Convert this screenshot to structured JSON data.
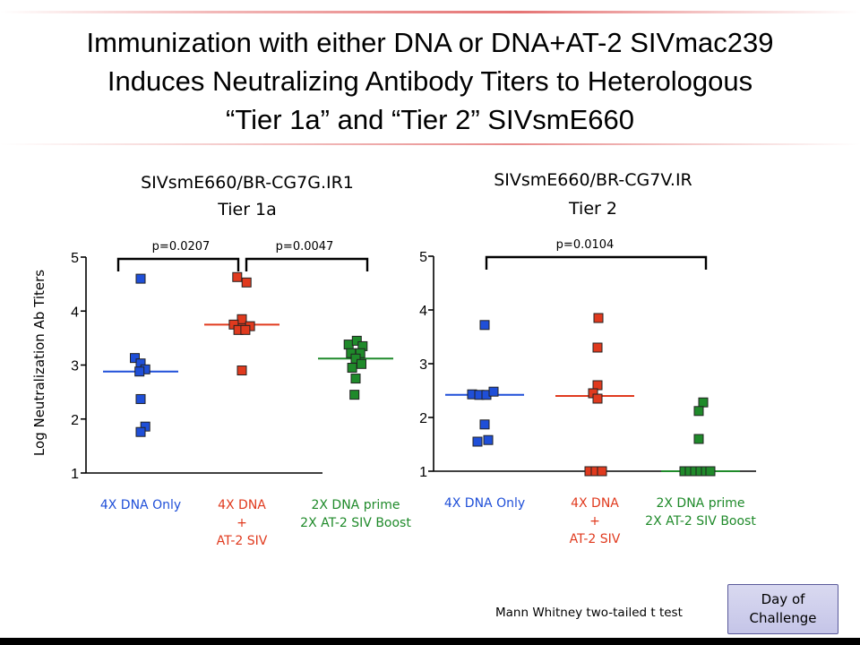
{
  "slide": {
    "title_lines": [
      "Immunization with either DNA or DNA+AT-2 SIVmac239",
      "Induces  Neutralizing Antibody Titers to Heterologous",
      "“Tier 1a”  and “Tier 2” SIVsmE660"
    ],
    "footnote": "Mann Whitney two-tailed t test",
    "button_label": "Day of\nChallenge"
  },
  "colors": {
    "blue": "#1f4fd8",
    "red": "#e03a1e",
    "green": "#1f8a2a"
  },
  "chart_data": [
    {
      "type": "scatter",
      "title_lines": [
        "SIVsmE660/BR-CG7G.IR1",
        "Tier 1a"
      ],
      "ylabel": "Log Neutralization Ab Titers",
      "ylim": [
        1,
        5
      ],
      "yticks": [
        "1",
        "2",
        "3",
        "4",
        "5"
      ],
      "categories": [
        {
          "lines": [
            "4X DNA Only"
          ],
          "color": "blue"
        },
        {
          "lines": [
            "4X DNA",
            "+",
            "AT-2 SIV"
          ],
          "color": "red"
        },
        {
          "lines": [
            "2X DNA prime",
            "2X AT-2 SIV Boost"
          ],
          "color": "green"
        }
      ],
      "series": [
        {
          "category": 0,
          "median": 2.88,
          "points": [
            [
              0,
              4.6
            ],
            [
              -0.25,
              3.13
            ],
            [
              0,
              3.03
            ],
            [
              0.2,
              2.92
            ],
            [
              -0.05,
              2.88
            ],
            [
              0,
              2.37
            ],
            [
              0.2,
              1.86
            ],
            [
              0,
              1.76
            ]
          ]
        },
        {
          "category": 1,
          "median": 3.75,
          "points": [
            [
              -0.2,
              4.63
            ],
            [
              0.2,
              4.53
            ],
            [
              0,
              3.85
            ],
            [
              -0.35,
              3.75
            ],
            [
              0.35,
              3.72
            ],
            [
              -0.15,
              3.65
            ],
            [
              0.15,
              3.65
            ],
            [
              0,
              2.9
            ]
          ]
        },
        {
          "category": 2,
          "median": 3.12,
          "points": [
            [
              -0.3,
              3.38
            ],
            [
              0.05,
              3.45
            ],
            [
              0.3,
              3.35
            ],
            [
              -0.2,
              3.22
            ],
            [
              0.2,
              3.22
            ],
            [
              0,
              3.12
            ],
            [
              0.25,
              3.02
            ],
            [
              -0.15,
              2.95
            ],
            [
              0,
              2.75
            ],
            [
              -0.05,
              2.45
            ]
          ]
        }
      ],
      "comparisons": [
        {
          "label": "p=0.0207",
          "from": 0,
          "to": 1
        },
        {
          "label": "p=0.0047",
          "from": 1,
          "to": 2
        }
      ]
    },
    {
      "type": "scatter",
      "title_lines": [
        "SIVsmE660/BR-CG7V.IR",
        "Tier 2"
      ],
      "ylim": [
        1,
        5
      ],
      "yticks": [
        "1",
        "2",
        "3",
        "4",
        "5"
      ],
      "categories": [
        {
          "lines": [
            "4X DNA Only"
          ],
          "color": "blue"
        },
        {
          "lines": [
            "4X DNA",
            "+",
            "AT-2 SIV"
          ],
          "color": "red"
        },
        {
          "lines": [
            "2X DNA prime",
            "2X AT-2 SIV Boost"
          ],
          "color": "green"
        }
      ],
      "series": [
        {
          "category": 0,
          "median": 2.42,
          "points": [
            [
              0,
              3.72
            ],
            [
              -0.7,
              2.43
            ],
            [
              -0.3,
              2.42
            ],
            [
              0.1,
              2.42
            ],
            [
              0.5,
              2.48
            ],
            [
              0,
              1.87
            ],
            [
              -0.4,
              1.55
            ],
            [
              0.2,
              1.58
            ]
          ]
        },
        {
          "category": 1,
          "median": 2.4,
          "points": [
            [
              0.2,
              3.85
            ],
            [
              0.15,
              3.3
            ],
            [
              0.15,
              2.6
            ],
            [
              -0.1,
              2.45
            ],
            [
              0.15,
              2.35
            ],
            [
              -0.3,
              1.0
            ],
            [
              0.05,
              1.0
            ],
            [
              0.4,
              1.0
            ]
          ]
        },
        {
          "category": 2,
          "median": 1.0,
          "points": [
            [
              0.15,
              2.28
            ],
            [
              -0.1,
              2.12
            ],
            [
              -0.1,
              1.6
            ],
            [
              -0.9,
              1.0
            ],
            [
              -0.6,
              1.0
            ],
            [
              -0.3,
              1.0
            ],
            [
              0.0,
              1.0
            ],
            [
              0.3,
              1.0
            ],
            [
              0.55,
              1.0
            ]
          ]
        }
      ],
      "comparisons": [
        {
          "label": "p=0.0104",
          "from": 0,
          "to": 2
        }
      ]
    }
  ]
}
